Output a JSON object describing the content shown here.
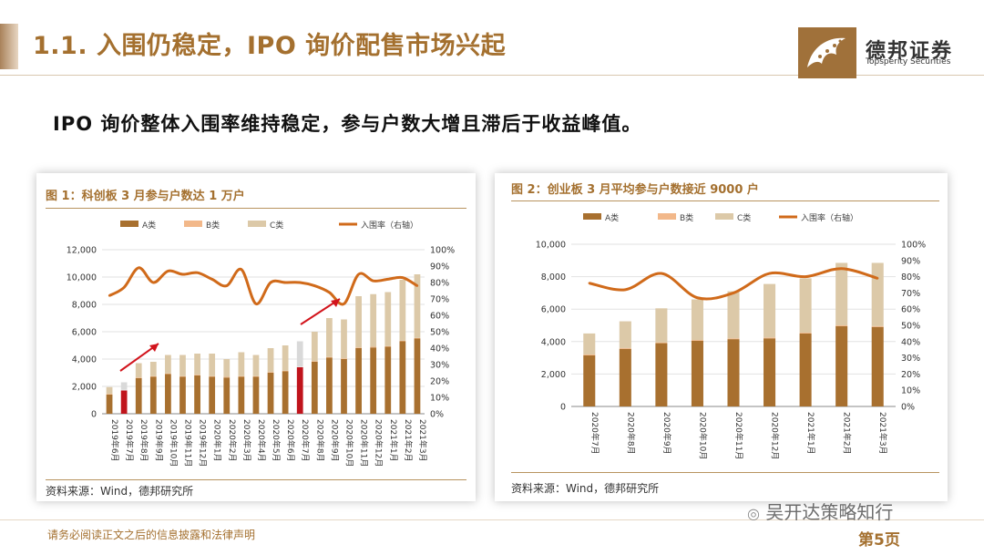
{
  "header": {
    "title": "1.1. 入围仍稳定，IPO 询价配售市场兴起",
    "logo_cn": "德邦证券",
    "logo_en": "Topsperity Securities"
  },
  "subtitle": "IPO 询价整体入围率维持稳定，参与户数大增且滞后于收益峰值。",
  "footer": {
    "disclaimer": "请务必阅读正文之后的信息披露和法律声明",
    "page": "第5页",
    "watermark": "吴开达策略知行"
  },
  "colors": {
    "a": "#a8702f",
    "b": "#f2b88a",
    "c": "#dcc9a8",
    "line": "#d06a1a",
    "highlight": "#c0141c",
    "accent": "#a4702f"
  },
  "chart_data": [
    {
      "type": "bar",
      "title": "图 1：科创板 3 月参与户数达 1 万户",
      "source": "资料来源：Wind，德邦研究所",
      "legend": [
        "A类",
        "B类",
        "C类",
        "入围率（右轴）"
      ],
      "categories": [
        "2019年6月",
        "2019年7月",
        "2019年8月",
        "2019年9月",
        "2019年10月",
        "2019年11月",
        "2019年12月",
        "2020年1月",
        "2020年2月",
        "2020年3月",
        "2020年4月",
        "2020年5月",
        "2020年6月",
        "2020年7月",
        "2020年8月",
        "2020年9月",
        "2020年10月",
        "2020年11月",
        "2020年12月",
        "2021年1月",
        "2021年2月",
        "2021年3月"
      ],
      "category_labels": [
        "2019年6月",
        "2019年7月",
        "2019年8月",
        "2019年9月",
        "2019年10月",
        "2019年11月",
        "2019年12月",
        "2020年1月",
        "2020年2月",
        "2020年3月",
        "2020年4月",
        "2020年5月",
        "2020年6月",
        "2020年7月",
        "2020年8月",
        "2020年9月",
        "2020年10月",
        "2020年11月",
        "2020年12月",
        "2021年1月",
        "2021年2月",
        "2021年3月"
      ],
      "series": [
        {
          "name": "A类",
          "stack": "bar",
          "values": [
            1400,
            1700,
            2600,
            2700,
            2900,
            2700,
            2800,
            2700,
            2650,
            2700,
            2700,
            3000,
            3100,
            3400,
            3800,
            4100,
            4000,
            4800,
            4850,
            4900,
            5300,
            5500
          ]
        },
        {
          "name": "B类",
          "stack": "bar",
          "values": [
            50,
            50,
            50,
            50,
            50,
            50,
            50,
            50,
            50,
            50,
            50,
            50,
            50,
            50,
            50,
            50,
            50,
            50,
            50,
            50,
            50,
            50
          ]
        },
        {
          "name": "C类",
          "stack": "bar",
          "values": [
            500,
            550,
            1050,
            1050,
            1350,
            1550,
            1550,
            1650,
            1300,
            1750,
            1550,
            1750,
            1850,
            1850,
            2150,
            2850,
            2850,
            3750,
            3850,
            3950,
            4450,
            4650
          ]
        },
        {
          "name": "入围率（右轴）",
          "axis": "right",
          "values": [
            72,
            77,
            89,
            80,
            87,
            85,
            86,
            82,
            78,
            88,
            67,
            80,
            80,
            80,
            78,
            74,
            67,
            85,
            81,
            82,
            83,
            78
          ]
        }
      ],
      "highlight_bars": [
        1,
        13
      ],
      "ylim": [
        0,
        12000
      ],
      "yticks": [
        "0",
        "2,000",
        "4,000",
        "6,000",
        "8,000",
        "10,000",
        "12,000"
      ],
      "y2lim": [
        0,
        100
      ],
      "y2ticks": [
        "0%",
        "10%",
        "20%",
        "30%",
        "40%",
        "50%",
        "60%",
        "70%",
        "80%",
        "90%",
        "100%"
      ]
    },
    {
      "type": "bar",
      "title": "图 2：创业板 3 月平均参与户数接近 9000 户",
      "source": "资料来源：Wind，德邦研究所",
      "legend": [
        "A类",
        "B类",
        "C类",
        "入围率（右轴）"
      ],
      "categories": [
        "2020年7月",
        "2020年8月",
        "2020年9月",
        "2020年10月",
        "2020年11月",
        "2020年12月",
        "2021年1月",
        "2021年2月",
        "2021年3月"
      ],
      "category_labels": [
        "2020年7月",
        "2020年8月",
        "2020年9月",
        "2020年10月",
        "2020年11月",
        "2020年12月",
        "2021年1月",
        "2021年2月",
        "2021年3月"
      ],
      "series": [
        {
          "name": "A类",
          "stack": "bar",
          "values": [
            3150,
            3550,
            3900,
            4050,
            4150,
            4200,
            4500,
            4950,
            4900
          ]
        },
        {
          "name": "B类",
          "stack": "bar",
          "values": [
            50,
            50,
            50,
            50,
            50,
            50,
            50,
            50,
            50
          ]
        },
        {
          "name": "C类",
          "stack": "bar",
          "values": [
            1300,
            1650,
            2100,
            2500,
            2900,
            3300,
            3350,
            3850,
            3900
          ]
        },
        {
          "name": "入围率（右轴）",
          "axis": "right",
          "values": [
            76,
            72,
            82,
            67,
            70,
            82,
            80,
            85,
            79
          ]
        }
      ],
      "highlight_bars": [],
      "ylim": [
        0,
        10000
      ],
      "yticks": [
        "0",
        "2,000",
        "4,000",
        "6,000",
        "8,000",
        "10,000"
      ],
      "y2lim": [
        0,
        100
      ],
      "y2ticks": [
        "0%",
        "10%",
        "20%",
        "30%",
        "40%",
        "50%",
        "60%",
        "70%",
        "80%",
        "90%",
        "100%"
      ]
    }
  ]
}
